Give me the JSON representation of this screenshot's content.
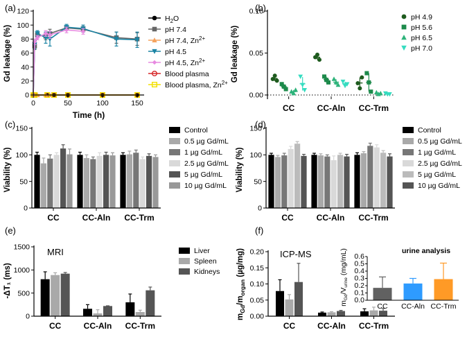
{
  "chart_data": [
    {
      "panel": "(a)",
      "type": "line",
      "xlabel": "Time (h)",
      "ylabel": "Gd leakage (%)",
      "xlim": [
        0,
        160
      ],
      "ylim": [
        0,
        120
      ],
      "xticks": [
        0,
        50,
        100,
        150
      ],
      "yticks": [
        0,
        20,
        40,
        60,
        80,
        100,
        120
      ],
      "series": [
        {
          "name": "H₂O",
          "legend_main": "H",
          "legend_sub": "2",
          "legend_rest": "O",
          "color": "#000000",
          "marker": "circle",
          "x": [
            0,
            2,
            20,
            30,
            50,
            100,
            150
          ],
          "y": [
            0,
            0,
            0,
            0,
            0,
            0,
            0
          ]
        },
        {
          "name": "pH 7.4",
          "legend_main": "pH 7.4",
          "color": "#666666",
          "marker": "square",
          "x": [
            0,
            2,
            6,
            18,
            24,
            48,
            72,
            120,
            150
          ],
          "y": [
            0,
            70,
            86,
            84,
            88,
            96,
            94,
            82,
            80
          ],
          "err": [
            0,
            5,
            4,
            5,
            6,
            3,
            4,
            8,
            9
          ]
        },
        {
          "name": "pH 7.4, Zn²⁺",
          "legend_main": "pH 7.4, Zn",
          "legend_sup": "2+",
          "color": "#f5a25d",
          "marker": "triangle-up",
          "x": [
            0,
            2,
            6,
            18,
            24
          ],
          "y": [
            0,
            0,
            0,
            0,
            0
          ]
        },
        {
          "name": "pH 4.5",
          "legend_main": "pH 4.5",
          "color": "#1b84a4",
          "marker": "triangle-down",
          "x": [
            0,
            2,
            6,
            18,
            24,
            48,
            72,
            120,
            150
          ],
          "y": [
            0,
            72,
            88,
            82,
            80,
            97,
            95,
            80,
            79
          ],
          "err": [
            0,
            6,
            4,
            8,
            10,
            4,
            5,
            10,
            11
          ]
        },
        {
          "name": "pH 4.5, Zn²⁺",
          "legend_main": "pH 4.5, Zn",
          "legend_sup": "2+",
          "color": "#e78ae0",
          "marker": "diamond",
          "x": [
            0,
            2,
            6,
            18,
            24,
            48,
            72
          ],
          "y": [
            0,
            76,
            82,
            88,
            86,
            93,
            91
          ],
          "err": [
            0,
            4,
            3,
            4,
            5,
            4,
            4
          ]
        },
        {
          "name": "Blood plasma",
          "legend_main": "Blood plasma",
          "color": "#d62728",
          "marker": "circle-open",
          "x": [
            0,
            2,
            20,
            30,
            50,
            100,
            150
          ],
          "y": [
            0,
            0,
            0,
            0,
            0,
            0,
            0
          ]
        },
        {
          "name": "Blood plasma, Zn²⁺",
          "legend_main": "Blood plasma, Zn",
          "legend_sup": "2+",
          "color": "#f2e000",
          "marker": "square-open",
          "x": [
            0,
            2,
            20,
            30,
            50,
            100,
            150
          ],
          "y": [
            0,
            0,
            0,
            0,
            0,
            0,
            0
          ]
        }
      ]
    },
    {
      "panel": "(b)",
      "type": "scatter",
      "ylabel": "Gd leakage (%)",
      "categories": [
        "CC",
        "CC-Aln",
        "CC-Trm"
      ],
      "ylim": [
        0,
        0.1
      ],
      "yticks": [
        0.0,
        0.05,
        0.1
      ],
      "ytick_labels": [
        "0.00",
        "0.05",
        "0.10"
      ],
      "series": [
        {
          "name": "pH 4.9",
          "color": "#1e5b1e",
          "marker": "circle",
          "points": [
            [
              0.019,
              0.023,
              0.017
            ],
            [
              0.045,
              0.048,
              0.042
            ],
            [
              0.014,
              0.008,
              0.021
            ]
          ]
        },
        {
          "name": "pH 5.6",
          "color": "#1d8a4b",
          "marker": "square",
          "points": [
            [
              0.013,
              0.01,
              0.007
            ],
            [
              0.022,
              0.018,
              0.015
            ],
            [
              0.026,
              0.015,
              0.004
            ]
          ]
        },
        {
          "name": "pH 6.5",
          "color": "#2db37a",
          "marker": "triangle-up",
          "points": [
            [
              0.004,
              0.002,
              0.006
            ],
            [
              0.019,
              0.015,
              0.012
            ],
            [
              0.003,
              0.001,
              0.002
            ]
          ]
        },
        {
          "name": "pH 7.0",
          "color": "#35dcc0",
          "marker": "triangle-down",
          "points": [
            [
              0.022,
              0.012,
              0.006
            ],
            [
              0.016,
              0.011,
              0.013
            ],
            [
              0.002,
              0.001,
              0.001
            ]
          ]
        }
      ]
    },
    {
      "panel": "(c)",
      "type": "bar",
      "ylabel": "Viability  (%)",
      "categories": [
        "CC",
        "CC-Aln",
        "CC-Trm"
      ],
      "ylim": [
        0,
        150
      ],
      "yticks": [
        0,
        50,
        100,
        150
      ],
      "series": [
        {
          "name": "Control",
          "color": "#000000",
          "values": [
            100,
            100,
            100
          ],
          "err": [
            5,
            5,
            4
          ]
        },
        {
          "name": "0.5 µg Gd/mL",
          "color": "#a9a9a9",
          "values": [
            84,
            94,
            101
          ],
          "err": [
            10,
            6,
            6
          ]
        },
        {
          "name": "1 µg Gd/mL",
          "color": "#777777",
          "values": [
            93,
            92,
            104
          ],
          "err": [
            7,
            4,
            5
          ]
        },
        {
          "name": "2.5 µg Gd/mL",
          "color": "#d9d9d9",
          "values": [
            100,
            98,
            92
          ],
          "err": [
            4,
            6,
            4
          ]
        },
        {
          "name": "5 µg Gd/mL",
          "color": "#555555",
          "values": [
            112,
            100,
            98
          ],
          "err": [
            7,
            5,
            4
          ]
        },
        {
          "name": "10 µg Gd/mL",
          "color": "#999999",
          "values": [
            101,
            99,
            96
          ],
          "err": [
            10,
            5,
            4
          ]
        }
      ]
    },
    {
      "panel": "(d)",
      "type": "bar",
      "ylabel": "Viability  (%)",
      "categories": [
        "CC",
        "CC-Aln",
        "CC-Trm"
      ],
      "ylim": [
        0,
        150
      ],
      "yticks": [
        0,
        50,
        100,
        150
      ],
      "series": [
        {
          "name": "Control",
          "color": "#000000",
          "values": [
            100,
            100,
            100
          ],
          "err": [
            3,
            3,
            4
          ]
        },
        {
          "name": "0.5 µg Gd/mL",
          "color": "#a9a9a9",
          "values": [
            96,
            99,
            103
          ],
          "err": [
            3,
            3,
            3
          ]
        },
        {
          "name": "1 µg Gd/mL",
          "color": "#777777",
          "values": [
            99,
            97,
            117
          ],
          "err": [
            4,
            3,
            5
          ]
        },
        {
          "name": "2.5 µg Gd/mL",
          "color": "#d9d9d9",
          "values": [
            111,
            90,
            114
          ],
          "err": [
            5,
            8,
            5
          ]
        },
        {
          "name": "5 µg Gd/mL",
          "color": "#bbbbbb",
          "values": [
            121,
            100,
            104
          ],
          "err": [
            4,
            3,
            4
          ]
        },
        {
          "name": "10 µg Gd/mL",
          "color": "#555555",
          "values": [
            98,
            97,
            97
          ],
          "err": [
            3,
            4,
            5
          ]
        }
      ]
    },
    {
      "panel": "(e)",
      "type": "bar",
      "title": "MRI",
      "ylabel": "-ΔT₁ (ms)",
      "categories": [
        "CC",
        "CC-Aln",
        "CC-Trm"
      ],
      "ylim": [
        0,
        1500
      ],
      "yticks": [
        0,
        500,
        1000,
        1500
      ],
      "series": [
        {
          "name": "Liver",
          "color": "#000000",
          "values": [
            800,
            160,
            300
          ],
          "err": [
            160,
            90,
            180
          ]
        },
        {
          "name": "Spleen",
          "color": "#a9a9a9",
          "values": [
            890,
            60,
            90
          ],
          "err": [
            50,
            80,
            40
          ]
        },
        {
          "name": "Kidneys",
          "color": "#555555",
          "values": [
            920,
            220,
            560
          ],
          "err": [
            25,
            5,
            70
          ]
        }
      ]
    },
    {
      "panel": "(f)",
      "type": "bar",
      "title": "ICP-MS",
      "ylabel": "mGd/morgan (µg/mg)",
      "ylabel_parts": [
        "m",
        "Gd",
        "/m",
        "organ",
        " (µg/mg)"
      ],
      "categories": [
        "CC",
        "CC-Aln",
        "CC-Trm"
      ],
      "ylim": [
        0,
        0.2
      ],
      "yticks": [
        0.0,
        0.05,
        0.1,
        0.15,
        0.2
      ],
      "ytick_labels": [
        "0.00",
        "0.05",
        "0.10",
        "0.15",
        "0.20"
      ],
      "series": [
        {
          "name": "Liver",
          "color": "#000000",
          "values": [
            0.078,
            0.011,
            0.015
          ],
          "err": [
            0.035,
            0.002,
            0.008
          ]
        },
        {
          "name": "Spleen",
          "color": "#a9a9a9",
          "values": [
            0.052,
            0.012,
            0.018
          ],
          "err": [
            0.015,
            0.002,
            0.01
          ]
        },
        {
          "name": "Kidneys",
          "color": "#555555",
          "values": [
            0.106,
            0.016,
            0.017
          ],
          "err": [
            0.058,
            0.002,
            0.007
          ]
        }
      ]
    },
    {
      "panel": "(f) inset",
      "type": "bar",
      "title": "urine analysis",
      "ylabel": "mGd/Vurine (mg/mL)",
      "ylabel_parts": [
        "m",
        "Gd",
        "/V",
        "urine",
        " (mg/mL)"
      ],
      "categories": [
        "CC",
        "CC-Aln",
        "CC-Trm"
      ],
      "ylim": [
        0,
        0.6
      ],
      "yticks": [
        0.0,
        0.1,
        0.2,
        0.3,
        0.4,
        0.5,
        0.6
      ],
      "ytick_labels": [
        "0.0",
        "0.1",
        "0.2",
        "0.3",
        "0.4",
        "0.5",
        "0.6"
      ],
      "colors": [
        "#616161",
        "#2e9bff",
        "#ff9a26"
      ],
      "values": [
        0.17,
        0.23,
        0.29
      ],
      "err": [
        0.15,
        0.07,
        0.22
      ]
    }
  ]
}
